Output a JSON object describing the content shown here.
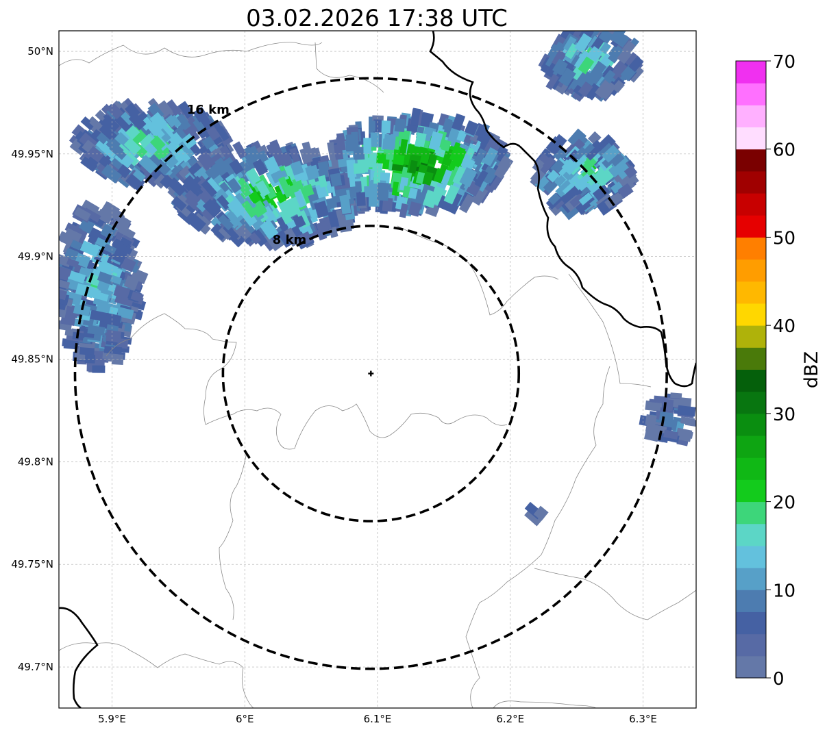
{
  "title": "03.02.2026 17:38 UTC",
  "map": {
    "lon_range": [
      5.86,
      6.34
    ],
    "lat_range": [
      49.68,
      50.01
    ],
    "x_ticks": [
      {
        "value": 5.9,
        "label": "5.9°E"
      },
      {
        "value": 6.0,
        "label": "6°E"
      },
      {
        "value": 6.1,
        "label": "6.1°E"
      },
      {
        "value": 6.2,
        "label": "6.2°E"
      },
      {
        "value": 6.3,
        "label": "6.3°E"
      }
    ],
    "y_ticks": [
      {
        "value": 49.7,
        "label": "49.7°N"
      },
      {
        "value": 49.75,
        "label": "49.75°N"
      },
      {
        "value": 49.8,
        "label": "49.8°N"
      },
      {
        "value": 49.85,
        "label": "49.85°N"
      },
      {
        "value": 49.9,
        "label": "49.9°N"
      },
      {
        "value": 49.95,
        "label": "49.95°N"
      },
      {
        "value": 50.0,
        "label": "50°N"
      }
    ],
    "gridlines": true,
    "radar_site": {
      "lon": 6.095,
      "lat": 49.843
    },
    "range_rings": [
      {
        "label": "8 km",
        "radius_km": 8
      },
      {
        "label": "16 km",
        "radius_km": 16
      }
    ]
  },
  "colorbar": {
    "label": "dBZ",
    "min": 0,
    "max": 70,
    "tick_values": [
      0,
      10,
      20,
      30,
      40,
      50,
      60,
      70
    ],
    "tick_labels": [
      "0",
      "10",
      "20",
      "30",
      "40",
      "50",
      "60",
      "70"
    ],
    "colors": [
      "#6478a8",
      "#576aa5",
      "#4561a3",
      "#4d7cb0",
      "#57a0c8",
      "#63c1dd",
      "#5cd6c6",
      "#3dd67a",
      "#13cb1c",
      "#10b815",
      "#0ea512",
      "#0a8e10",
      "#087610",
      "#05600b",
      "#4a7a0a",
      "#afb20a",
      "#ffd700",
      "#ffb800",
      "#ff9d00",
      "#ff7f00",
      "#e60000",
      "#c80000",
      "#a00000",
      "#7a0000",
      "#ffddff",
      "#ffb0ff",
      "#ff70ff",
      "#f030f0"
    ]
  },
  "chart_data": {
    "type": "heatmap",
    "title": "03.02.2026 17:38 UTC",
    "xlabel": "",
    "ylabel": "",
    "value_label": "dBZ",
    "value_range": [
      0,
      70
    ],
    "echo_regions": [
      {
        "lon": 5.93,
        "lat": 49.955,
        "dbz": 18
      },
      {
        "lon": 6.02,
        "lat": 49.93,
        "dbz": 22
      },
      {
        "lon": 6.13,
        "lat": 49.945,
        "dbz": 30
      },
      {
        "lon": 6.255,
        "lat": 49.94,
        "dbz": 20
      },
      {
        "lon": 6.26,
        "lat": 49.995,
        "dbz": 18
      },
      {
        "lon": 5.89,
        "lat": 49.885,
        "dbz": 15
      },
      {
        "lon": 6.32,
        "lat": 49.82,
        "dbz": 10
      },
      {
        "lon": 6.22,
        "lat": 49.775,
        "dbz": 5
      }
    ]
  }
}
